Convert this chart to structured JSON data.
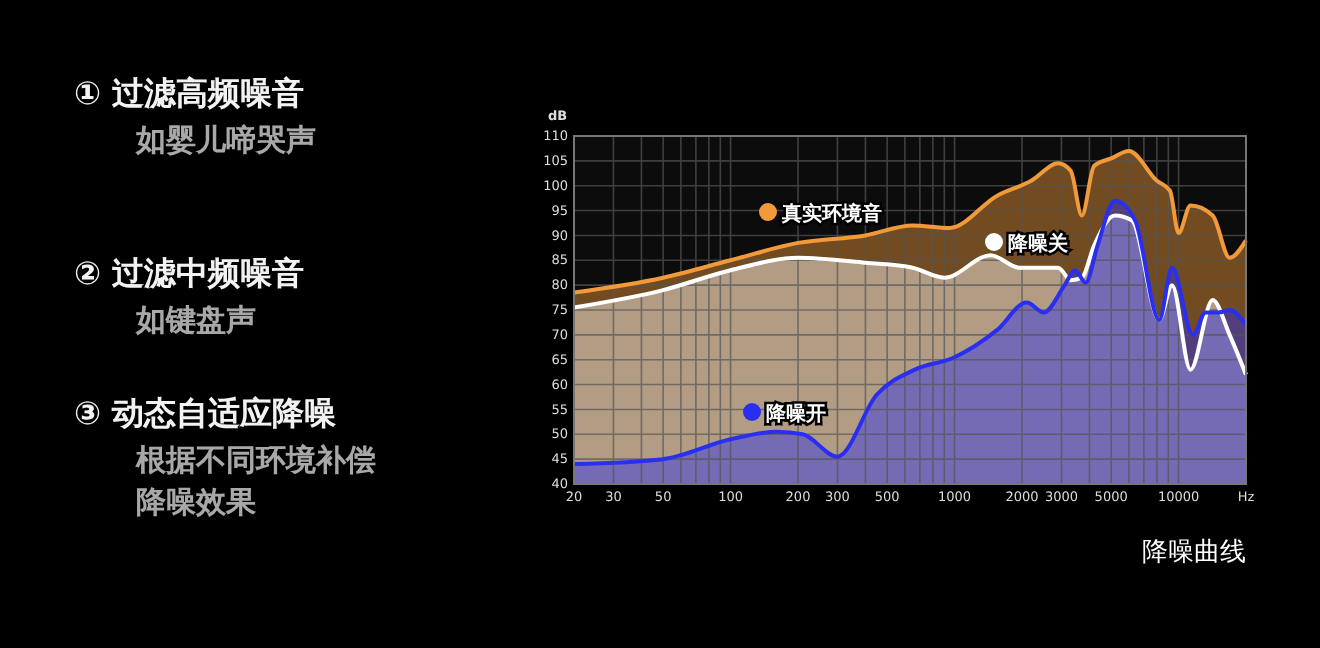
{
  "chart_data": [
    {
      "type": "other",
      "title": "① 过滤高频噪音",
      "subtitle": "如婴儿啼哭声"
    },
    {
      "type": "other",
      "title": "② 过滤中频噪音",
      "subtitle": "如键盘声"
    },
    {
      "type": "other",
      "title": "③ 动态自适应降噪",
      "subtitle": "根据不同环境补偿降噪效果"
    },
    {
      "type": "area",
      "ylabel": "dB",
      "log": "x",
      "grid": true,
      "legend": "left",
      "annotations": [
        "降噪曲线"
      ],
      "xlim": [
        20,
        20000
      ],
      "ylim": [
        40,
        110
      ],
      "xticks": [
        20,
        30,
        {
          "value": 40,
          "label": null
        },
        50,
        {
          "value": 60,
          "label": null
        },
        {
          "value": 70,
          "label": null
        },
        {
          "value": 80,
          "label": null
        },
        {
          "value": 90,
          "label": null
        },
        100,
        200,
        300,
        {
          "value": 400,
          "label": null
        },
        500,
        {
          "value": 600,
          "label": null
        },
        {
          "value": 700,
          "label": null
        },
        {
          "value": 800,
          "label": null
        },
        {
          "value": 900,
          "label": null
        },
        1000,
        2000,
        3000,
        {
          "value": 4000,
          "label": null
        },
        5000,
        {
          "value": 6000,
          "label": null
        },
        {
          "value": 7000,
          "label": null
        },
        {
          "value": 8000,
          "label": null
        },
        {
          "value": 9000,
          "label": null
        },
        10000,
        {
          "value": 20000,
          "label": "Hz"
        }
      ],
      "yticks": [
        40,
        45,
        50,
        55,
        60,
        65,
        70,
        75,
        80,
        85,
        90,
        95,
        100,
        105,
        110
      ],
      "series": [
        {
          "name": "真实环境音",
          "color": "#f29a3a",
          "x": [
            20,
            50,
            100,
            200,
            400,
            650,
            950,
            1550,
            2200,
            2900,
            3300,
            3700,
            4200,
            5000,
            6000,
            8000,
            9150,
            10000,
            11300,
            14200,
            16900,
            20000
          ],
          "values": [
            78.5,
            81.5,
            85,
            88.5,
            90,
            92,
            91.5,
            98,
            101,
            104.5,
            103,
            94,
            104,
            105.5,
            107,
            101,
            99,
            90.5,
            96,
            94,
            85.5,
            89
          ]
        },
        {
          "name": "降噪关",
          "color": "#ffffff",
          "x": [
            20,
            50,
            100,
            200,
            400,
            650,
            900,
            1450,
            1950,
            2900,
            3300,
            3700,
            4200,
            5200,
            6200,
            8200,
            9350,
            11300,
            14200,
            16900,
            20000
          ],
          "values": [
            75.5,
            79,
            83,
            85.5,
            84.5,
            83.5,
            81.5,
            86,
            83.5,
            83.5,
            81,
            81.5,
            88,
            94,
            93,
            73,
            80,
            63,
            77,
            70,
            62
          ]
        },
        {
          "name": "降噪开",
          "color": "#2a2ef0",
          "x": [
            20,
            50,
            100,
            160,
            210,
            300,
            450,
            665,
            1000,
            1550,
            2100,
            2500,
            3100,
            3450,
            3850,
            4350,
            5200,
            6400,
            8200,
            9350,
            11600,
            13200,
            15100,
            16900,
            20000
          ],
          "values": [
            44,
            45,
            49,
            50.5,
            50,
            45.5,
            58,
            63,
            65.5,
            71,
            76.5,
            74.5,
            80,
            83,
            80.5,
            88,
            97,
            93,
            73,
            83.5,
            70,
            74.5,
            74.5,
            75,
            72
          ]
        }
      ]
    }
  ]
}
